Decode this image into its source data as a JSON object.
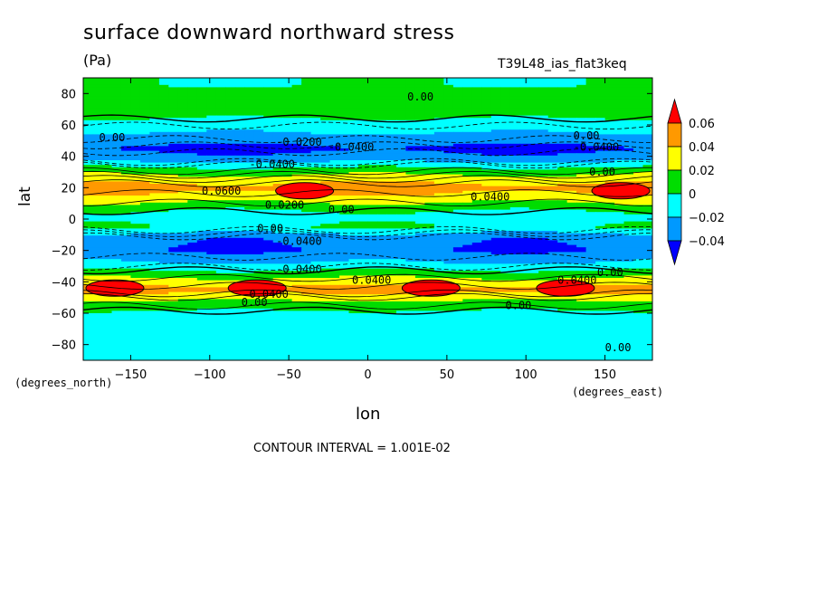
{
  "chart_data": {
    "type": "heatmap",
    "title": "surface downward northward stress",
    "units": "(Pa)",
    "run_label": "T39L48_ias_flat3keq",
    "xlabel": "lon",
    "ylabel": "lat",
    "x_unit_label": "(degrees_east)",
    "y_unit_label": "(degrees_north)",
    "xlim": [
      -180,
      180
    ],
    "ylim": [
      -90,
      90
    ],
    "x_ticks": [
      -150,
      -100,
      -50,
      0,
      50,
      100,
      150
    ],
    "y_ticks": [
      -80,
      -60,
      -40,
      -20,
      0,
      20,
      40,
      60,
      80
    ],
    "x_tick_labels": [
      "−150",
      "−100",
      "−50",
      "0",
      "50",
      "100",
      "150"
    ],
    "y_tick_labels": [
      "−80",
      "−60",
      "−40",
      "−20",
      "0",
      "20",
      "40",
      "60",
      "80"
    ],
    "contour_interval_text": "CONTOUR INTERVAL = 1.001E-02",
    "colorbar": {
      "levels": [
        0.06,
        0.04,
        0.02,
        0,
        -0.02,
        -0.04
      ],
      "labels": [
        "0.06",
        "0.04",
        "0.02",
        "0",
        "−0.02",
        "−0.04"
      ],
      "colors": [
        "#ff0000",
        "#ff9900",
        "#ffff00",
        "#00dd00",
        "#00ffff",
        "#0099ff",
        "#0000ff"
      ]
    },
    "zonal_profile_pa": [
      {
        "lat": 85,
        "value": 0.0
      },
      {
        "lat": 75,
        "value": 0.005
      },
      {
        "lat": 65,
        "value": 0.002
      },
      {
        "lat": 55,
        "value": -0.02
      },
      {
        "lat": 45,
        "value": -0.045
      },
      {
        "lat": 38,
        "value": -0.03
      },
      {
        "lat": 33,
        "value": 0.0
      },
      {
        "lat": 27,
        "value": 0.025
      },
      {
        "lat": 20,
        "value": 0.05
      },
      {
        "lat": 13,
        "value": 0.03
      },
      {
        "lat": 8,
        "value": 0.01
      },
      {
        "lat": 2,
        "value": -0.01
      },
      {
        "lat": -5,
        "value": 0.0
      },
      {
        "lat": -12,
        "value": -0.035
      },
      {
        "lat": -20,
        "value": -0.04
      },
      {
        "lat": -28,
        "value": -0.02
      },
      {
        "lat": -35,
        "value": 0.01
      },
      {
        "lat": -40,
        "value": 0.03
      },
      {
        "lat": -45,
        "value": 0.05
      },
      {
        "lat": -52,
        "value": 0.02
      },
      {
        "lat": -60,
        "value": -0.005
      },
      {
        "lat": -70,
        "value": -0.01
      },
      {
        "lat": -85,
        "value": -0.01
      }
    ],
    "contour_labels": [
      {
        "text": "0.00",
        "lon": -170,
        "lat": 52
      },
      {
        "text": "0.00",
        "lon": 25,
        "lat": 78
      },
      {
        "text": "-0.0200",
        "lon": -58,
        "lat": 49
      },
      {
        "text": "-0.0400",
        "lon": -25,
        "lat": 46
      },
      {
        "text": "0.00",
        "lon": 130,
        "lat": 53
      },
      {
        "text": "-0.0400",
        "lon": 130,
        "lat": 46
      },
      {
        "text": "-0.0400",
        "lon": -75,
        "lat": 35
      },
      {
        "text": "0.00",
        "lon": 140,
        "lat": 30
      },
      {
        "text": "0.0600",
        "lon": -105,
        "lat": 18
      },
      {
        "text": "0.0400",
        "lon": 65,
        "lat": 14
      },
      {
        "text": "0.0200",
        "lon": -65,
        "lat": 9
      },
      {
        "text": "0.00",
        "lon": -25,
        "lat": 6
      },
      {
        "text": "0.00",
        "lon": -70,
        "lat": -6
      },
      {
        "text": "-0.0400",
        "lon": -58,
        "lat": -14
      },
      {
        "text": "-0.0400",
        "lon": -58,
        "lat": -32
      },
      {
        "text": "0.0400",
        "lon": -10,
        "lat": -39
      },
      {
        "text": "0.00",
        "lon": 145,
        "lat": -34
      },
      {
        "text": "0.0400",
        "lon": 120,
        "lat": -39
      },
      {
        "text": "0.0400",
        "lon": -75,
        "lat": -48
      },
      {
        "text": "0.00",
        "lon": -80,
        "lat": -53
      },
      {
        "text": "0.00",
        "lon": 87,
        "lat": -55
      },
      {
        "text": "0.00",
        "lon": 150,
        "lat": -82
      }
    ],
    "maxima": [
      {
        "lon": -40,
        "lat": 18,
        "value_class": "above 0.06"
      },
      {
        "lon": 160,
        "lat": 18,
        "value_class": "above 0.06"
      },
      {
        "lon": -160,
        "lat": -44,
        "value_class": "above 0.06"
      },
      {
        "lon": -70,
        "lat": -44,
        "value_class": "above 0.06"
      },
      {
        "lon": 40,
        "lat": -44,
        "value_class": "above 0.06"
      },
      {
        "lon": 125,
        "lat": -44,
        "value_class": "above 0.06"
      }
    ],
    "grid": false
  }
}
